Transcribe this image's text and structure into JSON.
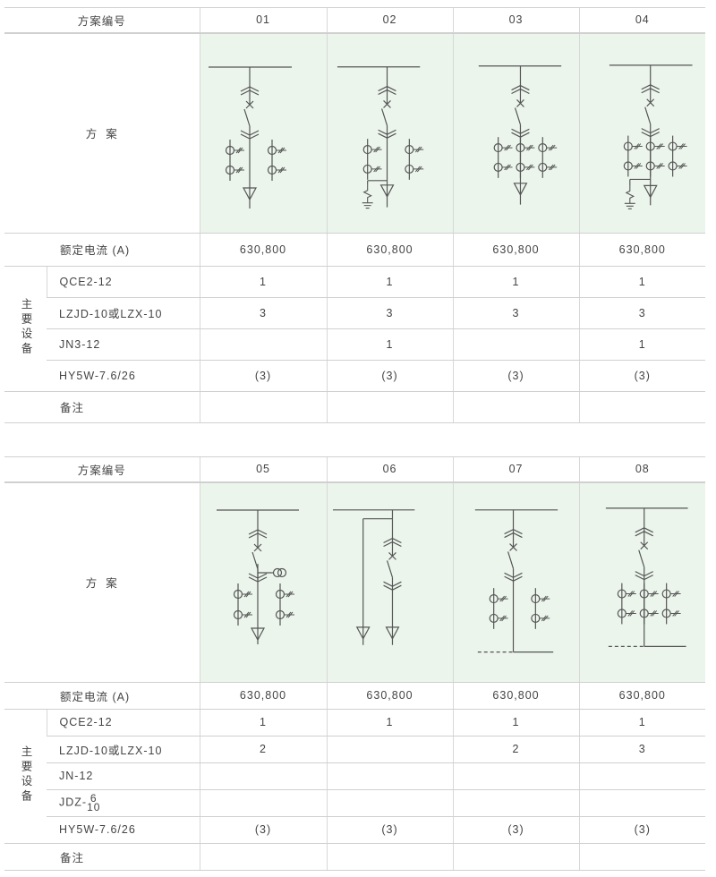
{
  "tables": [
    {
      "header_label": "方案编号",
      "schemes": [
        "01",
        "02",
        "03",
        "04"
      ],
      "scheme_label": "方  案",
      "current_label": "额定电流 (A)",
      "currents": [
        "630,800",
        "630,800",
        "630,800",
        "630,800"
      ],
      "equipment_label": "主要设备",
      "equipment": [
        {
          "name": "QCE2-12",
          "values": [
            "1",
            "1",
            "1",
            "1"
          ]
        },
        {
          "name": "LZJD-10或LZX-10",
          "values": [
            "3",
            "3",
            "3",
            "3"
          ]
        },
        {
          "name": "JN3-12",
          "values": [
            "",
            "1",
            "",
            "1"
          ]
        },
        {
          "name": "HY5W-7.6/26",
          "values": [
            "(3)",
            "(3)",
            "(3)",
            "(3)"
          ]
        }
      ],
      "remark_label": "备注"
    },
    {
      "header_label": "方案编号",
      "schemes": [
        "05",
        "06",
        "07",
        "08"
      ],
      "scheme_label": "方  案",
      "current_label": "额定电流 (A)",
      "currents": [
        "630,800",
        "630,800",
        "630,800",
        "630,800"
      ],
      "equipment_label": "主要设备",
      "equipment": [
        {
          "name": "QCE2-12",
          "values": [
            "1",
            "1",
            "1",
            "1"
          ]
        },
        {
          "name": "LZJD-10或LZX-10",
          "values": [
            "2",
            "",
            "2",
            "3"
          ]
        },
        {
          "name": "JN-12",
          "values": [
            "",
            "",
            "",
            ""
          ]
        },
        {
          "name": "JDZ-",
          "name_sup": "6",
          "name_sub": "10",
          "values": [
            "",
            "",
            "",
            ""
          ]
        },
        {
          "name": "HY5W-7.6/26",
          "values": [
            "(3)",
            "(3)",
            "(3)",
            "(3)"
          ]
        }
      ],
      "remark_label": "备注"
    }
  ],
  "colors": {
    "diagram_bg": "#ebf5ec",
    "line": "#555555",
    "border": "#d0d0d0"
  }
}
